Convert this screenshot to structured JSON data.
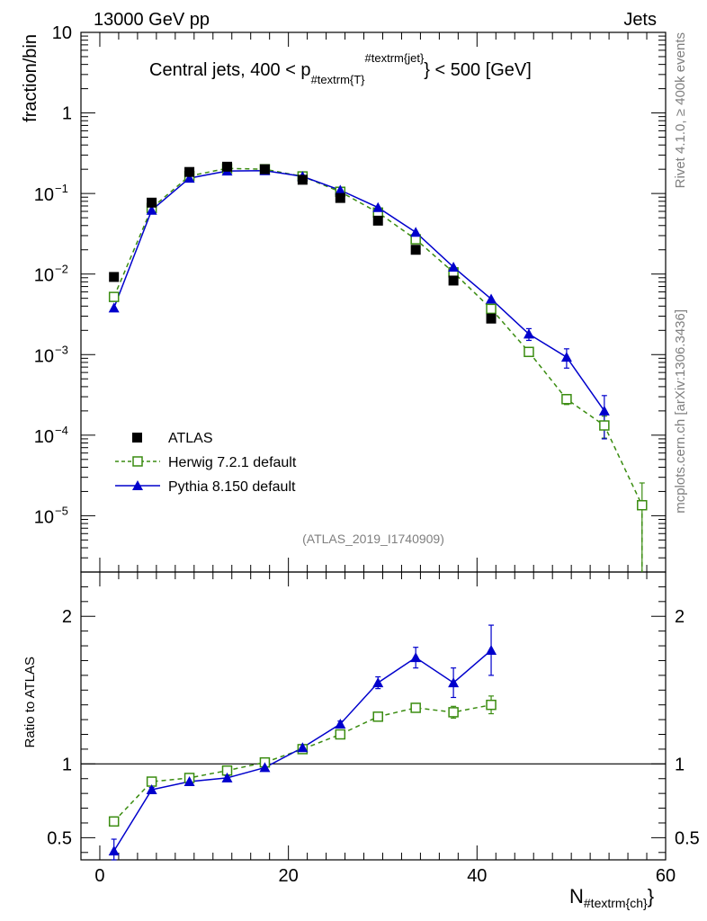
{
  "header": {
    "left": "13000 GeV pp",
    "right": "Jets"
  },
  "side": {
    "rivet": "Rivet 4.1.0, ≥ 400k events",
    "mcplots": "mcplots.cern.ch [arXiv:1306.3436]"
  },
  "watermark": "(ATLAS_2019_I1740909)",
  "colors": {
    "atlas": "#000000",
    "herwig": "#3a8c10",
    "pythia": "#0000cc"
  },
  "chart_data": [
    {
      "type": "scatter",
      "title": "Central jets, 400 < p#textrm{T}^#textrm{jet} < 500 [GeV]",
      "title_main": "Central jets, 400 < p",
      "title_sub": "#textrm{T}",
      "title_sup": "#textrm{jet}",
      "title_tail": "} < 500 [GeV]",
      "ylabel": "fraction/bin",
      "yscale": "log",
      "ylim": [
        2e-06,
        10
      ],
      "xlim": [
        -2,
        60
      ],
      "y_tick_labels": [
        {
          "v": 10,
          "base": "10",
          "exp": ""
        },
        {
          "v": 1,
          "base": "1",
          "exp": ""
        },
        {
          "v": 0.1,
          "base": "10",
          "exp": "−1"
        },
        {
          "v": 0.01,
          "base": "10",
          "exp": "−2"
        },
        {
          "v": 0.001,
          "base": "10",
          "exp": "−3"
        },
        {
          "v": 0.0001,
          "base": "10",
          "exp": "−4"
        },
        {
          "v": 1e-05,
          "base": "10",
          "exp": "−5"
        }
      ],
      "series": [
        {
          "name": "ATLAS",
          "marker": "square-filled",
          "x": [
            1.5,
            5.5,
            9.5,
            13.5,
            17.5,
            21.5,
            25.5,
            29.5,
            33.5,
            37.5,
            41.5
          ],
          "y": [
            0.0092,
            0.077,
            0.185,
            0.215,
            0.2,
            0.148,
            0.088,
            0.046,
            0.02,
            0.0083,
            0.0028
          ]
        },
        {
          "name": "Herwig 7.2.1 default",
          "marker": "square-open",
          "line": "dashed",
          "x": [
            1.5,
            5.5,
            9.5,
            13.5,
            17.5,
            21.5,
            25.5,
            29.5,
            33.5,
            37.5,
            41.5,
            45.5,
            49.5,
            53.5,
            57.5
          ],
          "y": [
            0.0052,
            0.066,
            0.165,
            0.205,
            0.2,
            0.163,
            0.105,
            0.058,
            0.027,
            0.0105,
            0.0037,
            0.00108,
            0.00028,
            0.000132,
            1.35e-05
          ],
          "err": [
            0,
            0,
            0,
            0,
            0,
            0,
            0,
            0,
            0,
            0,
            0,
            0,
            4e-05,
            4e-05,
            1.2e-05
          ]
        },
        {
          "name": "Pythia 8.150 default",
          "marker": "triangle-filled",
          "line": "solid",
          "x": [
            1.5,
            5.5,
            9.5,
            13.5,
            17.5,
            21.5,
            25.5,
            29.5,
            33.5,
            37.5,
            41.5,
            45.5,
            49.5,
            53.5
          ],
          "y": [
            0.0038,
            0.062,
            0.155,
            0.19,
            0.192,
            0.163,
            0.11,
            0.067,
            0.033,
            0.0122,
            0.0049,
            0.0018,
            0.00093,
            0.0002
          ],
          "err": [
            0,
            0,
            0,
            0,
            0,
            0,
            0,
            0,
            0,
            0,
            0,
            0.0003,
            0.00025,
            0.00011
          ]
        }
      ]
    },
    {
      "type": "line",
      "xlabel": "N#textrm{ch}",
      "xlabel_main": "N",
      "xlabel_sub": "#textrm{ch}",
      "xlabel_tail": "}",
      "ylabel": "Ratio to ATLAS",
      "ylim": [
        0.35,
        2.3
      ],
      "xlim": [
        -2,
        60
      ],
      "x_tick_labels": [
        "0",
        "20",
        "40",
        "60"
      ],
      "y_tick_labels": [
        "0.5",
        "1",
        "2"
      ],
      "reference": 1,
      "series": [
        {
          "name": "Herwig 7.2.1 default",
          "x": [
            1.5,
            5.5,
            9.5,
            13.5,
            17.5,
            21.5,
            25.5,
            29.5,
            33.5,
            37.5,
            41.5
          ],
          "y": [
            0.61,
            0.88,
            0.905,
            0.955,
            1.01,
            1.1,
            1.2,
            1.32,
            1.38,
            1.35,
            1.4
          ],
          "err": [
            0.03,
            0.015,
            0.015,
            0.015,
            0.015,
            0.015,
            0.02,
            0.025,
            0.03,
            0.04,
            0.06
          ]
        },
        {
          "name": "Pythia 8.150 default",
          "x": [
            1.5,
            5.5,
            9.5,
            13.5,
            17.5,
            21.5,
            25.5,
            29.5,
            33.5,
            37.5,
            41.5
          ],
          "y": [
            0.41,
            0.825,
            0.88,
            0.905,
            0.975,
            1.11,
            1.27,
            1.55,
            1.72,
            1.55,
            1.77
          ],
          "err": [
            0.08,
            0.015,
            0.015,
            0.015,
            0.015,
            0.02,
            0.02,
            0.04,
            0.07,
            0.1,
            0.17
          ]
        }
      ]
    }
  ]
}
